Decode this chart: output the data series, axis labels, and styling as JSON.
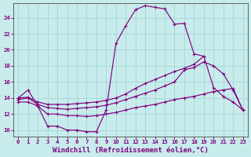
{
  "background_color": "#c8ecec",
  "grid_color": "#a8d8d8",
  "line_color": "#800080",
  "xlabel": "Windchill (Refroidissement éolien,°C)",
  "xlabel_fontsize": 6.5,
  "yticks": [
    10,
    12,
    14,
    16,
    18,
    20,
    22,
    24
  ],
  "xlim": [
    -0.5,
    23.5
  ],
  "ylim": [
    9.2,
    25.8
  ],
  "curve1_x": [
    0,
    1,
    2,
    3,
    4,
    5,
    6,
    7,
    8,
    9,
    10,
    11,
    12,
    13,
    14,
    15,
    16,
    17,
    18,
    19
  ],
  "curve1_y": [
    14.0,
    15.0,
    13.0,
    10.5,
    10.5,
    10.0,
    10.0,
    9.8,
    9.8,
    12.5,
    20.8,
    23.0,
    25.0,
    25.5,
    25.3,
    25.1,
    23.2,
    23.3,
    19.5,
    19.2
  ],
  "curve2_x": [
    0,
    1,
    2,
    3,
    4,
    5,
    6,
    7,
    8,
    9,
    10,
    11,
    12,
    13,
    14,
    15,
    16,
    17,
    18,
    19,
    20,
    21,
    22,
    23
  ],
  "curve2_y": [
    14.0,
    14.1,
    13.5,
    13.2,
    13.2,
    13.2,
    13.3,
    13.4,
    13.5,
    13.7,
    14.0,
    14.5,
    15.2,
    15.8,
    16.3,
    16.8,
    17.3,
    17.7,
    18.2,
    19.2,
    15.3,
    14.2,
    13.5,
    12.5
  ],
  "curve3_x": [
    0,
    1,
    2,
    3,
    4,
    5,
    6,
    7,
    8,
    9,
    10,
    11,
    12,
    13,
    14,
    15,
    16,
    17,
    18,
    19,
    20,
    21,
    22,
    23
  ],
  "curve3_y": [
    13.8,
    14.0,
    13.2,
    12.8,
    12.7,
    12.6,
    12.7,
    12.8,
    12.9,
    13.1,
    13.4,
    13.8,
    14.2,
    14.6,
    15.0,
    15.5,
    16.0,
    17.5,
    17.8,
    18.5,
    18.0,
    17.0,
    15.0,
    12.5
  ],
  "curve4_x": [
    0,
    1,
    2,
    3,
    4,
    5,
    6,
    7,
    8,
    9,
    10,
    11,
    12,
    13,
    14,
    15,
    16,
    17,
    18,
    19,
    20,
    21,
    22,
    23
  ],
  "curve4_y": [
    13.5,
    13.5,
    13.0,
    12.0,
    12.0,
    11.8,
    11.8,
    11.7,
    11.8,
    12.0,
    12.2,
    12.5,
    12.8,
    13.0,
    13.2,
    13.5,
    13.8,
    14.0,
    14.2,
    14.5,
    14.8,
    15.0,
    15.2,
    12.5
  ]
}
